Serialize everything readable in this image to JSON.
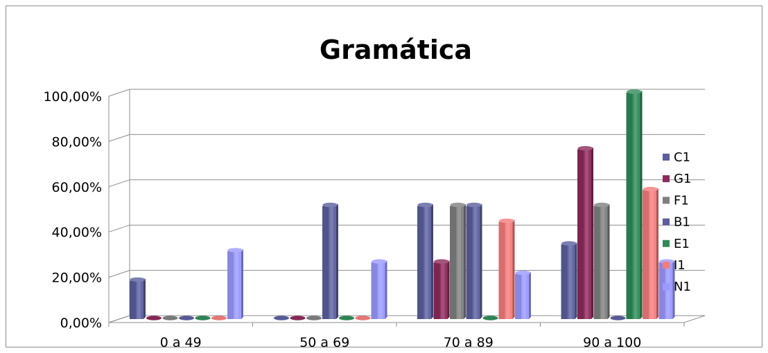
{
  "chart_data": {
    "type": "bar",
    "title": "Gramática",
    "categories": [
      "0 a 49",
      "50 a 69",
      "70 a 89",
      "90 a 100"
    ],
    "y_ticks": [
      "0,00%",
      "20,00%",
      "40,00%",
      "60,00%",
      "80,00%",
      "100,00%"
    ],
    "ylim": [
      0,
      100
    ],
    "y_unit": "percent",
    "grid": true,
    "legend_position": "right",
    "series": [
      {
        "name": "C1",
        "color": "#5b5f9e",
        "values": [
          17,
          0,
          50,
          33
        ]
      },
      {
        "name": "G1",
        "color": "#8c2a5a",
        "values": [
          0,
          0,
          25,
          75
        ]
      },
      {
        "name": "F1",
        "color": "#7f7f7f",
        "values": [
          0,
          0,
          50,
          50
        ]
      },
      {
        "name": "B1",
        "color": "#5b5f9e",
        "values": [
          0,
          50,
          50,
          0
        ]
      },
      {
        "name": "E1",
        "color": "#2e8b57",
        "values": [
          0,
          0,
          0,
          100
        ]
      },
      {
        "name": "I1",
        "color": "#f47c7c",
        "values": [
          0,
          0,
          43,
          57
        ]
      },
      {
        "name": "N1",
        "color": "#9999ff",
        "values": [
          30,
          25,
          20,
          25
        ]
      }
    ]
  }
}
